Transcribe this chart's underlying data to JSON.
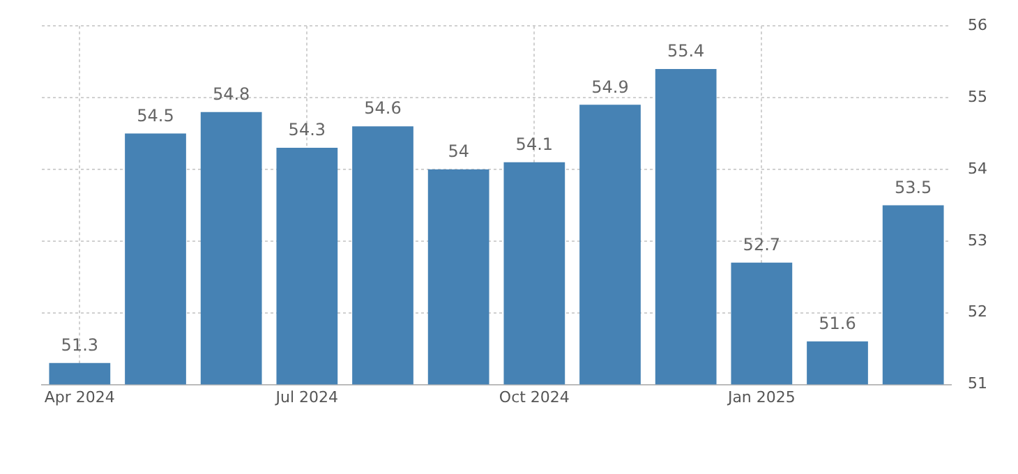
{
  "chart_data": {
    "type": "bar",
    "categories": [
      "Apr 2024",
      null,
      null,
      "Jul 2024",
      null,
      null,
      "Oct 2024",
      null,
      null,
      "Jan 2025",
      null,
      null
    ],
    "values": [
      51.3,
      54.5,
      54.8,
      54.3,
      54.6,
      54,
      54.1,
      54.9,
      55.4,
      52.7,
      51.6,
      53.5
    ],
    "color": "#4682b4",
    "ylim": [
      51,
      56
    ],
    "yticks": [
      51,
      52,
      53,
      54,
      55,
      56
    ],
    "grid": true,
    "data_labels": true,
    "legend": false
  }
}
